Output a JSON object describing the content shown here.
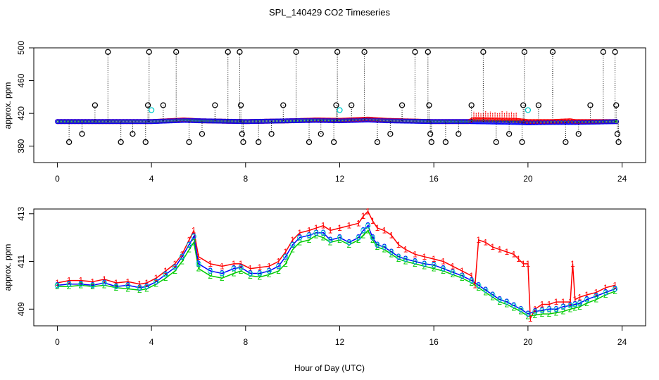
{
  "title": "SPL_140429  CO2 Timeseries",
  "xlabel": "Hour of Day (UTC)",
  "colors": {
    "red": "#ff0000",
    "green": "#00cc00",
    "blue": "#0000ff",
    "cyan": "#00cccc",
    "black": "#000000"
  },
  "chart_data": [
    {
      "type": "scatter",
      "title": "SPL_140429  CO2 Timeseries",
      "ylabel": "approx. ppm",
      "xlim": [
        -1,
        25
      ],
      "ylim": [
        360,
        500
      ],
      "xticks": [
        "0",
        "4",
        "8",
        "12",
        "16",
        "20",
        "24"
      ],
      "yticks": [
        "380",
        "420",
        "460",
        "500"
      ],
      "ytick_values": [
        380,
        420,
        460,
        500
      ],
      "xtick_values": [
        0,
        4,
        8,
        12,
        16,
        20,
        24
      ],
      "baseline_series": [
        {
          "name": "1",
          "color": "#ff0000",
          "x": [
            0,
            2,
            4,
            5.4,
            6,
            8,
            10,
            11,
            12,
            13.2,
            14,
            16,
            17.5,
            17.7,
            18.5,
            19.5,
            20,
            20.2,
            21,
            21.8,
            22,
            23,
            23.8
          ],
          "y": [
            410,
            410,
            410,
            412,
            411,
            410,
            411,
            412,
            411.5,
            413,
            411.5,
            410,
            410,
            412.5,
            412,
            411.5,
            410,
            410,
            410,
            411,
            410,
            410,
            410
          ]
        },
        {
          "name": "3",
          "color": "#0000ff",
          "x": [
            0,
            2,
            4,
            5.4,
            6,
            8,
            10,
            11,
            12,
            13.2,
            14,
            16,
            17.5,
            18.5,
            19.5,
            20,
            21,
            22,
            23,
            23.8
          ],
          "y": [
            410,
            410,
            410,
            411.5,
            411,
            410,
            411,
            411.5,
            411,
            412,
            411,
            410,
            410,
            409.5,
            409,
            408.5,
            409,
            409,
            409.5,
            410
          ]
        }
      ],
      "spikes": [
        {
          "x": 0.5,
          "y": 385
        },
        {
          "x": 1.05,
          "y": 395
        },
        {
          "x": 1.6,
          "y": 430
        },
        {
          "x": 2.15,
          "y": 495
        },
        {
          "x": 2.7,
          "y": 385
        },
        {
          "x": 3.2,
          "y": 395
        },
        {
          "x": 3.75,
          "y": 385
        },
        {
          "x": 3.85,
          "y": 430
        },
        {
          "x": 3.9,
          "y": 495
        },
        {
          "x": 4.5,
          "y": 430
        },
        {
          "x": 5.05,
          "y": 495
        },
        {
          "x": 5.6,
          "y": 385
        },
        {
          "x": 6.15,
          "y": 395
        },
        {
          "x": 6.7,
          "y": 430
        },
        {
          "x": 7.25,
          "y": 495
        },
        {
          "x": 7.75,
          "y": 495
        },
        {
          "x": 7.8,
          "y": 430
        },
        {
          "x": 7.85,
          "y": 395
        },
        {
          "x": 7.9,
          "y": 385
        },
        {
          "x": 8.55,
          "y": 385
        },
        {
          "x": 9.1,
          "y": 395
        },
        {
          "x": 9.6,
          "y": 430
        },
        {
          "x": 10.15,
          "y": 495
        },
        {
          "x": 10.7,
          "y": 385
        },
        {
          "x": 11.2,
          "y": 395
        },
        {
          "x": 11.75,
          "y": 385
        },
        {
          "x": 11.85,
          "y": 430
        },
        {
          "x": 11.9,
          "y": 495
        },
        {
          "x": 12.5,
          "y": 430
        },
        {
          "x": 13.05,
          "y": 495
        },
        {
          "x": 13.6,
          "y": 385
        },
        {
          "x": 14.15,
          "y": 395
        },
        {
          "x": 14.65,
          "y": 430
        },
        {
          "x": 15.2,
          "y": 495
        },
        {
          "x": 15.75,
          "y": 495
        },
        {
          "x": 15.8,
          "y": 430
        },
        {
          "x": 15.85,
          "y": 395
        },
        {
          "x": 15.9,
          "y": 385
        },
        {
          "x": 16.5,
          "y": 385
        },
        {
          "x": 17.05,
          "y": 395
        },
        {
          "x": 17.6,
          "y": 430
        },
        {
          "x": 18.1,
          "y": 495
        },
        {
          "x": 18.65,
          "y": 385
        },
        {
          "x": 19.2,
          "y": 395
        },
        {
          "x": 19.75,
          "y": 385
        },
        {
          "x": 19.8,
          "y": 430
        },
        {
          "x": 19.85,
          "y": 495
        },
        {
          "x": 20.45,
          "y": 430
        },
        {
          "x": 21.05,
          "y": 495
        },
        {
          "x": 21.6,
          "y": 385
        },
        {
          "x": 22.15,
          "y": 395
        },
        {
          "x": 22.65,
          "y": 430
        },
        {
          "x": 23.2,
          "y": 495
        },
        {
          "x": 23.7,
          "y": 495
        },
        {
          "x": 23.75,
          "y": 430
        },
        {
          "x": 23.8,
          "y": 395
        },
        {
          "x": 23.85,
          "y": 385
        }
      ],
      "cyan_points": [
        {
          "x": 4.0,
          "y": 424
        },
        {
          "x": 12.0,
          "y": 424
        },
        {
          "x": 20.0,
          "y": 424
        }
      ]
    },
    {
      "type": "line",
      "ylabel": "approx. ppm",
      "xlabel": "Hour of Day (UTC)",
      "xlim": [
        -1,
        25
      ],
      "ylim": [
        408.3,
        413.2
      ],
      "xticks": [
        "0",
        "4",
        "8",
        "12",
        "16",
        "20",
        "24"
      ],
      "yticks": [
        "409",
        "411",
        "413"
      ],
      "ytick_values": [
        409,
        411,
        413
      ],
      "xtick_values": [
        0,
        4,
        8,
        12,
        16,
        20,
        24
      ],
      "series": [
        {
          "name": "1",
          "label": "1",
          "color": "#ff0000",
          "x": [
            0,
            0.5,
            1,
            1.5,
            2,
            2.5,
            3,
            3.5,
            3.8,
            4.2,
            4.6,
            5.0,
            5.3,
            5.6,
            5.8,
            6.0,
            6.5,
            7.0,
            7.5,
            7.8,
            8.2,
            8.6,
            9.0,
            9.4,
            9.7,
            10.0,
            10.3,
            10.7,
            11.0,
            11.3,
            11.6,
            12.0,
            12.4,
            12.8,
            13.0,
            13.2,
            13.4,
            13.6,
            13.9,
            14.2,
            14.5,
            14.8,
            15.2,
            15.6,
            16.0,
            16.4,
            16.8,
            17.2,
            17.6,
            17.75,
            17.9,
            18.2,
            18.5,
            18.8,
            19.1,
            19.4,
            19.6,
            19.8,
            20.0,
            20.1,
            20.3,
            20.6,
            20.9,
            21.2,
            21.5,
            21.8,
            21.9,
            22.0,
            22.2,
            22.5,
            22.9,
            23.3,
            23.7
          ],
          "y": [
            410.1,
            410.2,
            410.2,
            410.15,
            410.25,
            410.1,
            410.15,
            410.05,
            410.1,
            410.3,
            410.6,
            410.9,
            411.3,
            411.9,
            412.3,
            411.2,
            410.9,
            410.8,
            410.9,
            410.9,
            410.7,
            410.75,
            410.8,
            411.0,
            411.4,
            411.9,
            412.2,
            412.3,
            412.4,
            412.5,
            412.3,
            412.4,
            412.5,
            412.6,
            412.9,
            413.1,
            412.7,
            412.4,
            412.3,
            412.1,
            411.7,
            411.5,
            411.3,
            411.2,
            411.1,
            411.0,
            410.8,
            410.6,
            410.4,
            410.0,
            411.9,
            411.8,
            411.6,
            411.5,
            411.4,
            411.3,
            411.1,
            410.9,
            410.9,
            408.6,
            409.0,
            409.2,
            409.2,
            409.3,
            409.3,
            409.3,
            410.9,
            409.4,
            409.5,
            409.6,
            409.7,
            409.9,
            410.0
          ]
        },
        {
          "name": "2",
          "label": "2",
          "color": "#00cc00",
          "x": [
            0,
            0.5,
            1,
            1.5,
            2,
            2.5,
            3,
            3.5,
            3.8,
            4.2,
            4.6,
            5.0,
            5.3,
            5.6,
            5.8,
            6.0,
            6.5,
            7.0,
            7.5,
            7.8,
            8.2,
            8.6,
            9.0,
            9.4,
            9.7,
            10.0,
            10.3,
            10.7,
            11.0,
            11.3,
            11.6,
            12.0,
            12.4,
            12.8,
            13.0,
            13.2,
            13.4,
            13.6,
            13.9,
            14.2,
            14.5,
            14.8,
            15.2,
            15.6,
            16.0,
            16.4,
            16.8,
            17.2,
            17.6,
            17.9,
            18.2,
            18.5,
            18.8,
            19.1,
            19.4,
            19.7,
            20.0,
            20.3,
            20.6,
            20.9,
            21.2,
            21.5,
            21.8,
            22.0,
            22.2,
            22.5,
            22.9,
            23.3,
            23.7
          ],
          "y": [
            409.95,
            409.95,
            410.0,
            409.95,
            410.0,
            409.9,
            409.85,
            409.8,
            409.85,
            410.05,
            410.3,
            410.6,
            411.0,
            411.5,
            411.8,
            410.7,
            410.4,
            410.3,
            410.5,
            410.6,
            410.4,
            410.35,
            410.45,
            410.6,
            410.9,
            411.5,
            411.8,
            411.9,
            412.1,
            412.0,
            411.8,
            411.9,
            411.7,
            411.9,
            412.1,
            412.3,
            411.9,
            411.6,
            411.5,
            411.3,
            411.1,
            411.0,
            410.9,
            410.8,
            410.7,
            410.6,
            410.45,
            410.3,
            410.1,
            409.9,
            409.7,
            409.5,
            409.3,
            409.2,
            409.05,
            408.9,
            408.7,
            408.75,
            408.8,
            408.8,
            408.85,
            408.9,
            409.0,
            409.05,
            409.1,
            409.25,
            409.4,
            409.6,
            409.75
          ]
        },
        {
          "name": "3",
          "label": "3",
          "color": "#0000ff",
          "x": [
            0,
            0.5,
            1,
            1.5,
            2,
            2.5,
            3,
            3.5,
            3.8,
            4.2,
            4.6,
            5.0,
            5.3,
            5.6,
            5.8,
            6.0,
            6.5,
            7.0,
            7.5,
            7.8,
            8.2,
            8.6,
            9.0,
            9.4,
            9.7,
            10.0,
            10.3,
            10.7,
            11.0,
            11.3,
            11.6,
            12.0,
            12.4,
            12.8,
            13.0,
            13.2,
            13.4,
            13.6,
            13.9,
            14.2,
            14.5,
            14.8,
            15.2,
            15.6,
            16.0,
            16.4,
            16.8,
            17.2,
            17.6,
            17.9,
            18.2,
            18.5,
            18.8,
            19.1,
            19.4,
            19.7,
            20.0,
            20.3,
            20.6,
            20.9,
            21.2,
            21.5,
            21.8,
            22.0,
            22.2,
            22.5,
            22.9,
            23.3,
            23.7
          ],
          "y": [
            410.0,
            410.05,
            410.05,
            410.0,
            410.1,
            409.95,
            410.0,
            409.9,
            409.95,
            410.15,
            410.45,
            410.75,
            411.2,
            411.7,
            412.05,
            410.9,
            410.6,
            410.5,
            410.7,
            410.75,
            410.5,
            410.5,
            410.6,
            410.8,
            411.2,
            411.7,
            412.0,
            412.1,
            412.2,
            412.2,
            411.9,
            412.0,
            411.8,
            412.0,
            412.3,
            412.5,
            412.0,
            411.7,
            411.6,
            411.4,
            411.2,
            411.1,
            411.0,
            410.9,
            410.85,
            410.7,
            410.55,
            410.4,
            410.2,
            410.0,
            409.8,
            409.6,
            409.4,
            409.3,
            409.15,
            409.0,
            408.8,
            408.9,
            408.95,
            409.0,
            409.0,
            409.1,
            409.15,
            409.2,
            409.25,
            409.4,
            409.55,
            409.7,
            409.85
          ]
        }
      ]
    }
  ]
}
